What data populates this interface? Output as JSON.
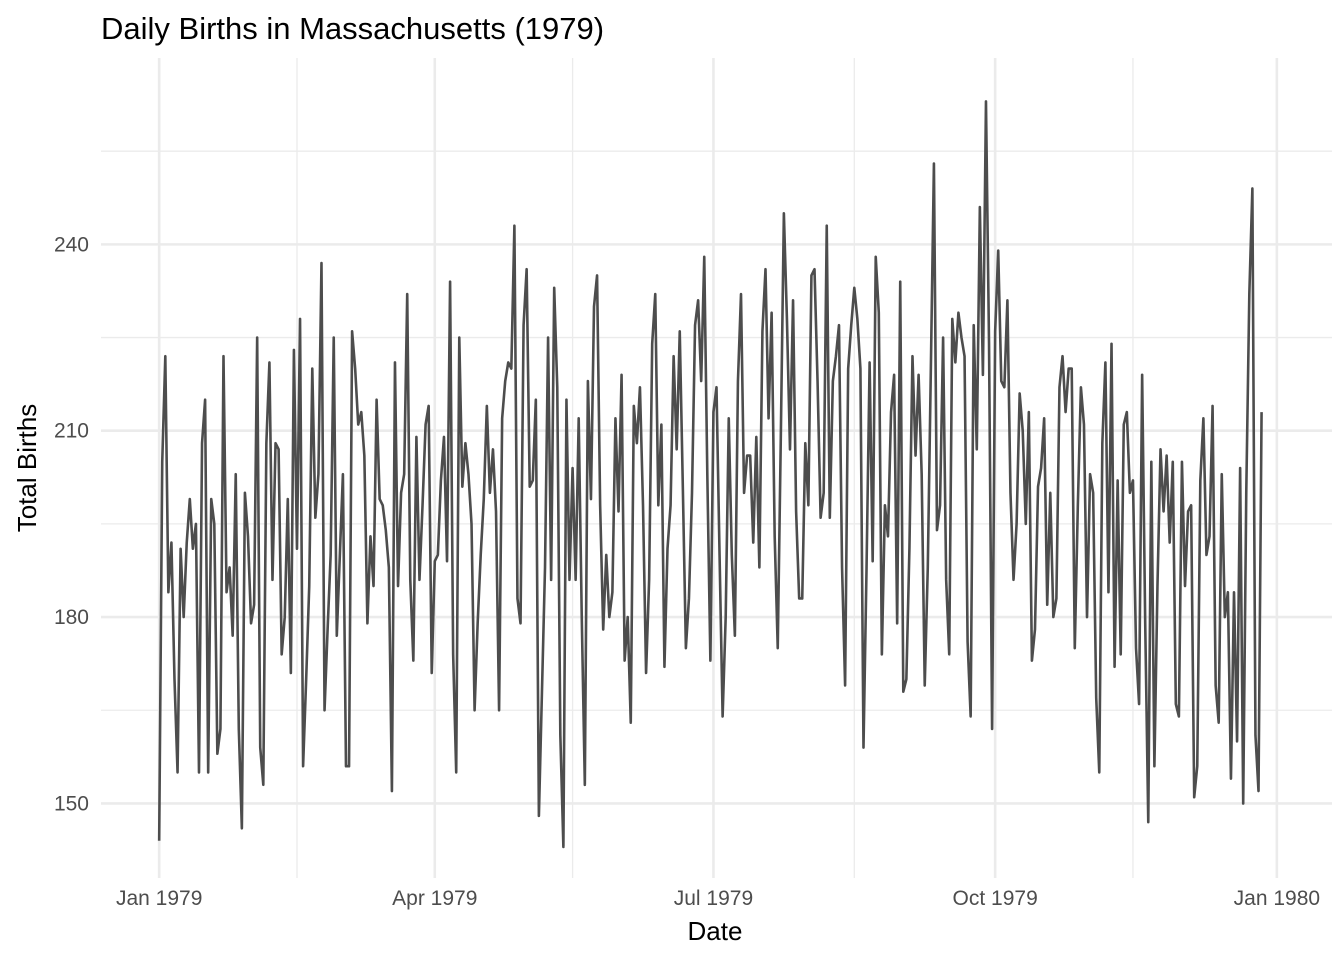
{
  "chart_data": {
    "type": "line",
    "title": "Daily Births in Massachusetts (1979)",
    "xlabel": "Date",
    "ylabel": "Total Births",
    "x_start": "1979-01-01",
    "x_end": "1979-12-31",
    "x_ticks": [
      {
        "date": "1979-01-01",
        "label": "Jan 1979"
      },
      {
        "date": "1979-04-01",
        "label": "Apr 1979"
      },
      {
        "date": "1979-07-01",
        "label": "Jul 1979"
      },
      {
        "date": "1979-10-01",
        "label": "Oct 1979"
      },
      {
        "date": "1980-01-01",
        "label": "Jan 1980"
      }
    ],
    "x_minor_ticks": [
      "1979-02-15",
      "1979-05-16",
      "1979-08-16",
      "1979-11-15"
    ],
    "xlim": [
      "1978-12-13",
      "1980-01-19"
    ],
    "y_ticks": [
      150,
      180,
      210,
      240
    ],
    "y_minor_ticks": [
      165,
      195,
      225,
      255
    ],
    "ylim": [
      138,
      270
    ],
    "grid": true,
    "legend": "none",
    "series": [
      {
        "values": [
          144,
          205,
          222,
          184,
          192,
          170,
          155,
          191,
          180,
          192,
          199,
          191,
          195,
          155,
          208,
          215,
          155,
          199,
          195,
          158,
          162,
          222,
          184,
          188,
          177,
          203,
          162,
          146,
          200,
          193,
          179,
          182,
          225,
          159,
          153,
          208,
          221,
          186,
          208,
          207,
          174,
          180,
          199,
          171,
          223,
          191,
          228,
          156,
          170,
          185,
          220,
          196,
          203,
          237,
          165,
          178,
          190,
          225,
          177,
          190,
          203,
          156,
          156,
          226,
          220,
          211,
          213,
          206,
          179,
          193,
          185,
          215,
          199,
          198,
          194,
          188,
          152,
          221,
          185,
          200,
          203,
          232,
          186,
          173,
          209,
          186,
          198,
          211,
          214,
          171,
          189,
          190,
          202,
          209,
          189,
          234,
          174,
          155,
          225,
          201,
          208,
          203,
          195,
          165,
          179,
          190,
          199,
          214,
          200,
          207,
          197,
          165,
          212,
          218,
          221,
          220,
          243,
          183,
          179,
          227,
          236,
          201,
          202,
          215,
          148,
          168,
          188,
          225,
          186,
          233,
          217,
          161,
          143,
          215,
          186,
          204,
          186,
          212,
          180,
          153,
          218,
          199,
          230,
          235,
          198,
          178,
          190,
          180,
          184,
          212,
          197,
          219,
          173,
          180,
          163,
          214,
          208,
          217,
          198,
          171,
          186,
          224,
          232,
          198,
          211,
          172,
          191,
          198,
          222,
          207,
          226,
          201,
          175,
          183,
          200,
          227,
          231,
          218,
          238,
          203,
          173,
          213,
          217,
          190,
          164,
          180,
          212,
          190,
          177,
          218,
          232,
          200,
          206,
          206,
          192,
          209,
          188,
          226,
          236,
          212,
          229,
          193,
          175,
          209,
          245,
          228,
          207,
          231,
          197,
          183,
          183,
          208,
          198,
          235,
          236,
          218,
          196,
          200,
          243,
          196,
          218,
          222,
          227,
          188,
          169,
          220,
          227,
          233,
          228,
          220,
          159,
          188,
          221,
          189,
          238,
          229,
          174,
          198,
          193,
          213,
          219,
          179,
          234,
          168,
          170,
          191,
          222,
          206,
          219,
          203,
          169,
          188,
          220,
          253,
          194,
          198,
          225,
          186,
          174,
          228,
          221,
          229,
          225,
          222,
          176,
          164,
          227,
          207,
          246,
          219,
          263,
          224,
          162,
          226,
          239,
          218,
          217,
          231,
          200,
          186,
          195,
          216,
          210,
          195,
          213,
          173,
          178,
          201,
          204,
          212,
          182,
          200,
          180,
          183,
          217,
          222,
          213,
          220,
          220,
          175,
          198,
          217,
          211,
          180,
          203,
          200,
          167,
          155,
          208,
          221,
          184,
          224,
          172,
          202,
          174,
          211,
          213,
          200,
          202,
          175,
          166,
          219,
          179,
          147,
          205,
          156,
          185,
          207,
          197,
          206,
          192,
          205,
          166,
          164,
          205,
          185,
          197,
          198,
          151,
          156,
          202,
          212,
          190,
          193,
          214,
          169,
          163,
          203,
          180,
          184,
          154,
          184,
          160,
          204,
          150,
          200,
          232,
          249,
          161,
          152,
          213
        ]
      }
    ]
  }
}
